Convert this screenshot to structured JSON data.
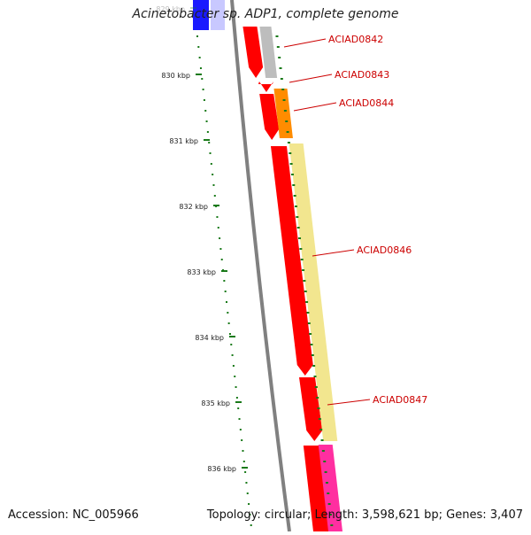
{
  "title": "Acinetobacter sp. ADP1, complete genome",
  "footer": {
    "accession": "Accession: NC_005966",
    "summary": "Topology: circular; Length: 3,598,621 bp; Genes: 3,407"
  },
  "ticks": [
    {
      "label": "829 kbp",
      "faded": true
    },
    {
      "label": "830 kbp"
    },
    {
      "label": "831 kbp"
    },
    {
      "label": "832 kbp"
    },
    {
      "label": "833 kbp"
    },
    {
      "label": "834 kbp"
    },
    {
      "label": "835 kbp"
    },
    {
      "label": "836 kbp"
    }
  ],
  "genes": [
    "ACIAD0842",
    "ACIAD0843",
    "ACIAD0844",
    "ACIAD0846",
    "ACIAD0847"
  ],
  "colors": {
    "backbone": "#808080",
    "tick": "#1a7a1a",
    "forward_strand": "#ff0000",
    "label": "#cc0000",
    "gray_gene": "#bdbdbd",
    "orange_gene": "#ff8c00",
    "yellow_gene": "#f2e68f",
    "pink_gene": "#ff2fa0",
    "blue_gene": "#1a1aff",
    "lightblue_gene": "#c8c8ff"
  }
}
